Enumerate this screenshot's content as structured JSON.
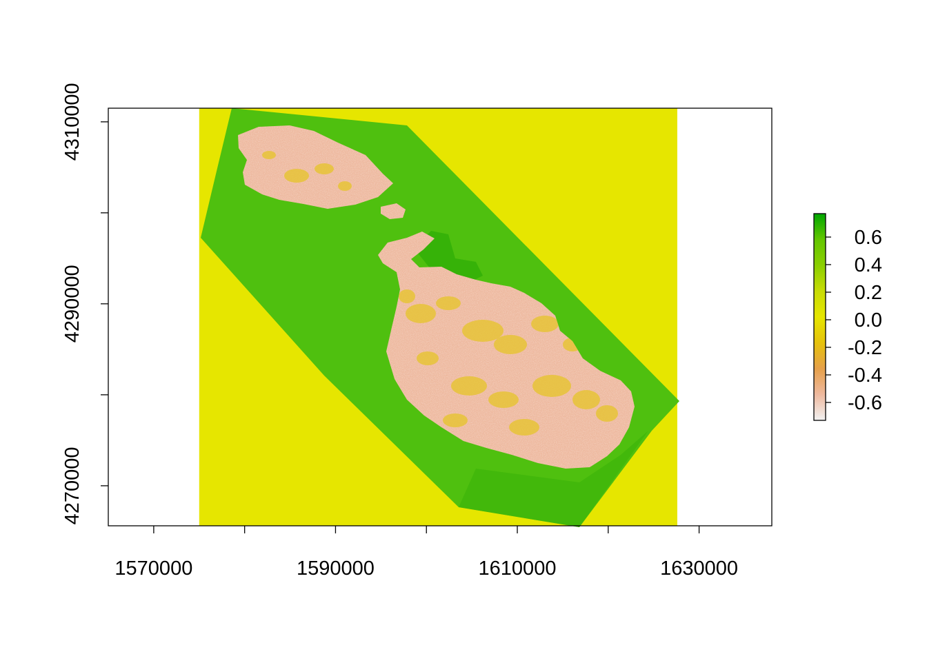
{
  "chart_data": {
    "type": "heatmap",
    "title": "",
    "xlabel": "",
    "ylabel": "",
    "xlim": [
      1565000,
      1638000
    ],
    "ylim": [
      4265600,
      4311500
    ],
    "x_ticks": [
      1570000,
      1580000,
      1590000,
      1600000,
      1610000,
      1620000,
      1630000
    ],
    "x_tick_labels": [
      "1570000",
      "",
      "1590000",
      "",
      "1610000",
      "",
      "1630000"
    ],
    "y_ticks": [
      4270000,
      4280000,
      4290000,
      4300000,
      4310000
    ],
    "y_tick_labels": [
      "4270000",
      "",
      "4290000",
      "",
      "4310000"
    ],
    "raster_extent": {
      "xmin": 1575000,
      "xmax": 1627600,
      "ymin": 4265600,
      "ymax": 4311500
    },
    "background_value": 0.0,
    "water_value": 0.5,
    "land_value": -0.5,
    "legend": {
      "position": "right",
      "range": [
        -0.73,
        0.77
      ],
      "ticks": [
        0.6,
        0.4,
        0.2,
        0.0,
        -0.2,
        -0.4,
        -0.6
      ],
      "tick_labels": [
        "0.6",
        "0.4",
        "0.2",
        "0.0",
        "-0.2",
        "-0.4",
        "-0.6"
      ],
      "colors": [
        "#f2f2f2",
        "#eeb99f",
        "#e6a04a",
        "#e6c20c",
        "#e6e600",
        "#c8dc05",
        "#8bcf00",
        "#63c600",
        "#00a600"
      ]
    }
  }
}
